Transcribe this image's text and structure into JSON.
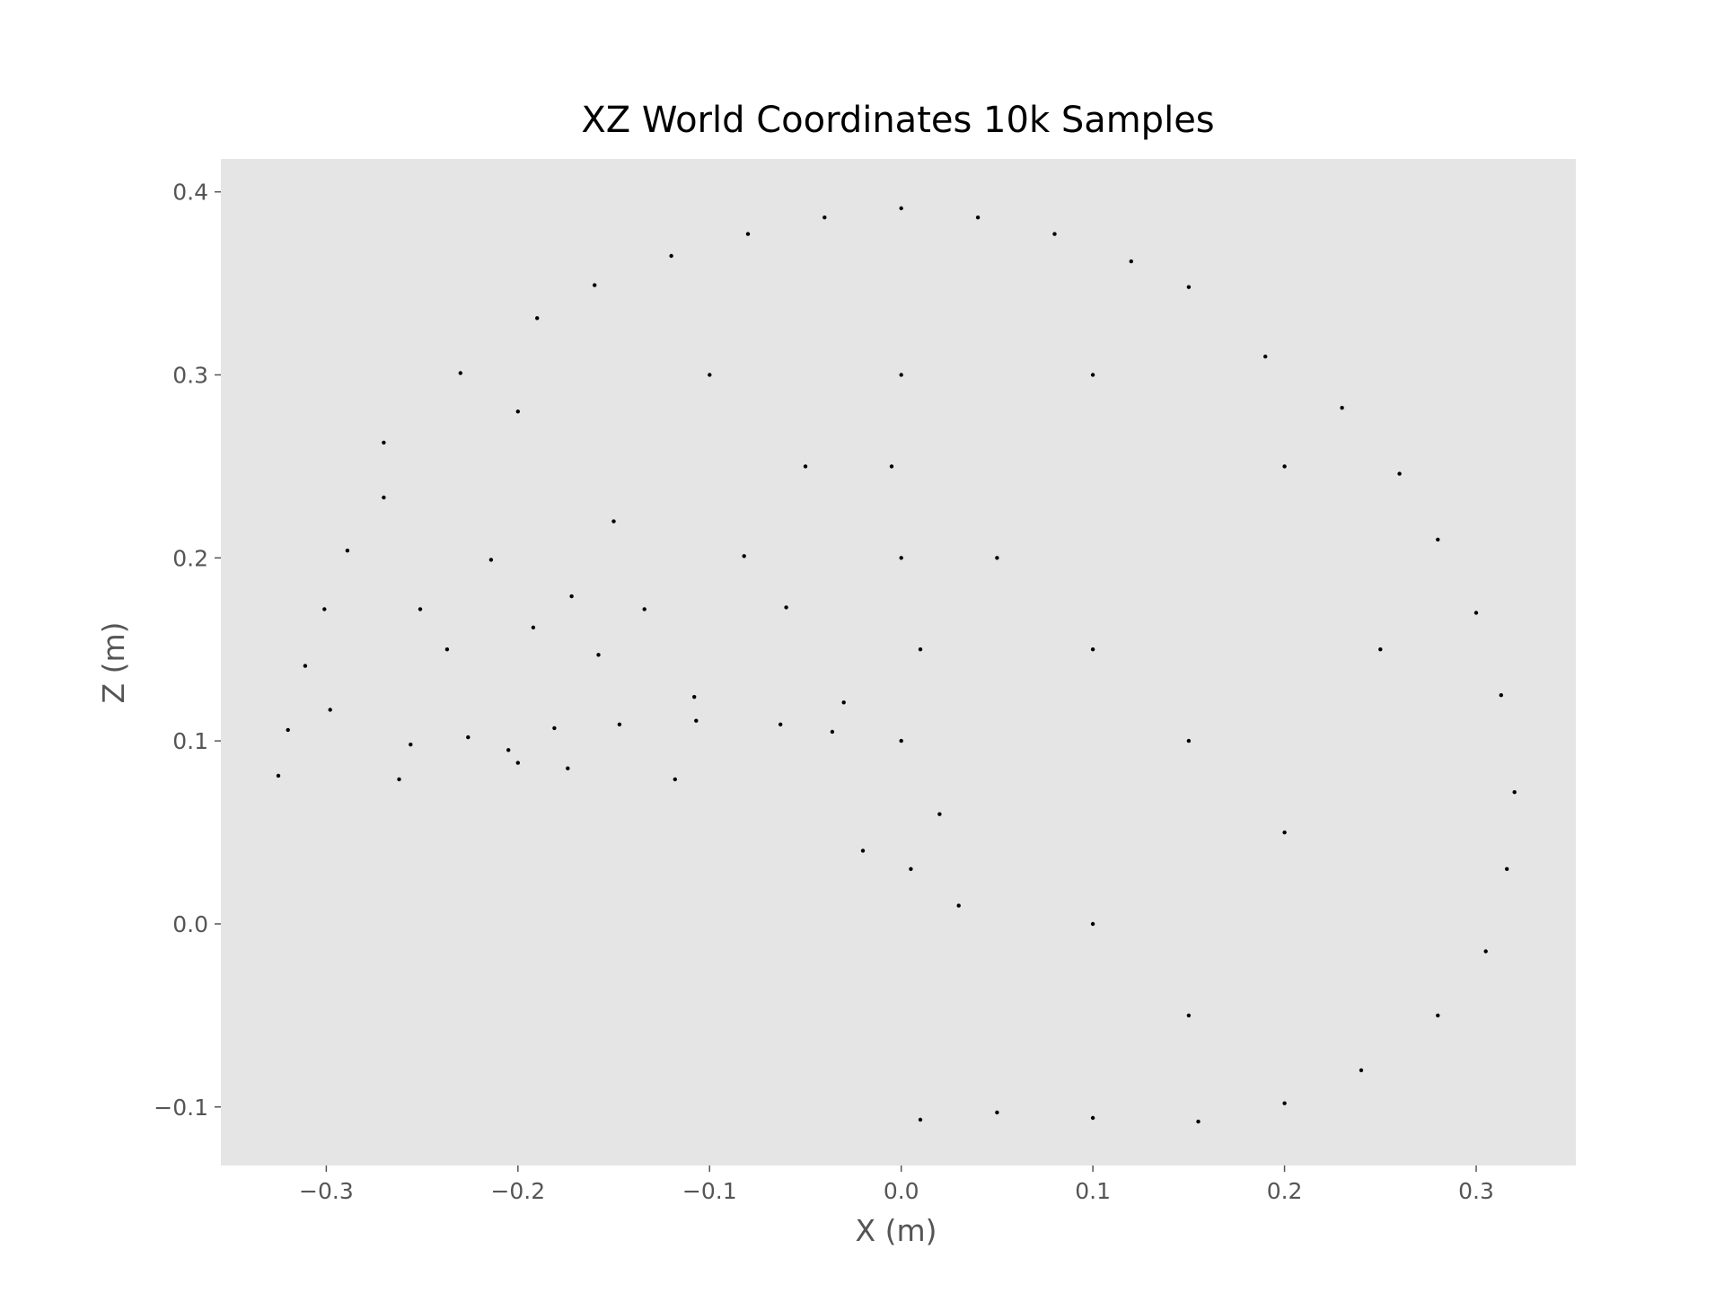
{
  "chart_data": {
    "type": "scatter",
    "title": "XZ World Coordinates 10k Samples",
    "xlabel": "X (m)",
    "ylabel": "Z (m)",
    "xlim": [
      -0.355,
      0.352
    ],
    "ylim": [
      -0.132,
      0.418
    ],
    "x_ticks": [
      {
        "value": -0.3,
        "label": "−0.3"
      },
      {
        "value": -0.2,
        "label": "−0.2"
      },
      {
        "value": -0.1,
        "label": "−0.1"
      },
      {
        "value": 0.0,
        "label": "0.0"
      },
      {
        "value": 0.1,
        "label": "0.1"
      },
      {
        "value": 0.2,
        "label": "0.2"
      },
      {
        "value": 0.3,
        "label": "0.3"
      }
    ],
    "y_ticks": [
      {
        "value": -0.1,
        "label": "−0.1"
      },
      {
        "value": 0.0,
        "label": "0.0"
      },
      {
        "value": 0.1,
        "label": "0.1"
      },
      {
        "value": 0.2,
        "label": "0.2"
      },
      {
        "value": 0.3,
        "label": "0.3"
      },
      {
        "value": 0.4,
        "label": "0.4"
      }
    ],
    "grid": false,
    "legend": "none",
    "colors": {
      "plot_background": "#e5e5e5",
      "marker": "#000000",
      "tick_and_label": "#555555",
      "title": "#000000"
    },
    "series": [
      {
        "sample_count": 10000,
        "points": [
          [
            -0.325,
            0.081
          ],
          [
            -0.32,
            0.106
          ],
          [
            -0.311,
            0.141
          ],
          [
            -0.298,
            0.117
          ],
          [
            -0.262,
            0.079
          ],
          [
            -0.256,
            0.098
          ],
          [
            -0.226,
            0.102
          ],
          [
            -0.205,
            0.095
          ],
          [
            -0.2,
            0.088
          ],
          [
            -0.181,
            0.107
          ],
          [
            -0.174,
            0.085
          ],
          [
            -0.147,
            0.109
          ],
          [
            -0.118,
            0.079
          ],
          [
            -0.107,
            0.111
          ],
          [
            -0.063,
            0.109
          ],
          [
            -0.036,
            0.105
          ],
          [
            -0.301,
            0.172
          ],
          [
            -0.289,
            0.204
          ],
          [
            -0.27,
            0.233
          ],
          [
            -0.251,
            0.172
          ],
          [
            -0.237,
            0.15
          ],
          [
            -0.214,
            0.199
          ],
          [
            -0.192,
            0.162
          ],
          [
            -0.172,
            0.179
          ],
          [
            -0.158,
            0.147
          ],
          [
            -0.134,
            0.172
          ],
          [
            -0.108,
            0.124
          ],
          [
            -0.082,
            0.201
          ],
          [
            -0.06,
            0.173
          ],
          [
            -0.03,
            0.121
          ],
          [
            -0.27,
            0.263
          ],
          [
            -0.23,
            0.301
          ],
          [
            -0.19,
            0.331
          ],
          [
            -0.16,
            0.349
          ],
          [
            -0.12,
            0.365
          ],
          [
            -0.08,
            0.377
          ],
          [
            -0.04,
            0.386
          ],
          [
            0.0,
            0.391
          ],
          [
            0.04,
            0.386
          ],
          [
            0.08,
            0.377
          ],
          [
            0.12,
            0.362
          ],
          [
            0.15,
            0.348
          ],
          [
            0.19,
            0.31
          ],
          [
            0.23,
            0.282
          ],
          [
            0.26,
            0.246
          ],
          [
            0.28,
            0.21
          ],
          [
            0.3,
            0.17
          ],
          [
            0.313,
            0.125
          ],
          [
            0.32,
            0.072
          ],
          [
            0.316,
            0.03
          ],
          [
            0.305,
            -0.015
          ],
          [
            0.28,
            -0.05
          ],
          [
            0.24,
            -0.08
          ],
          [
            0.2,
            -0.098
          ],
          [
            0.155,
            -0.108
          ],
          [
            0.1,
            -0.106
          ],
          [
            0.05,
            -0.103
          ],
          [
            0.01,
            -0.107
          ],
          [
            0.005,
            0.03
          ],
          [
            0.02,
            0.06
          ],
          [
            -0.02,
            0.04
          ],
          [
            0.03,
            0.01
          ],
          [
            0.0,
            0.1
          ],
          [
            0.01,
            0.15
          ],
          [
            0.0,
            0.2
          ],
          [
            -0.005,
            0.25
          ],
          [
            0.0,
            0.3
          ],
          [
            0.05,
            0.2
          ],
          [
            0.1,
            0.15
          ],
          [
            0.15,
            0.1
          ],
          [
            0.2,
            0.05
          ],
          [
            0.1,
            0.0
          ],
          [
            0.15,
            -0.05
          ],
          [
            0.25,
            0.15
          ],
          [
            0.2,
            0.25
          ],
          [
            0.1,
            0.3
          ],
          [
            -0.1,
            0.3
          ],
          [
            -0.2,
            0.28
          ],
          [
            -0.05,
            0.25
          ],
          [
            -0.15,
            0.22
          ]
        ]
      }
    ]
  }
}
